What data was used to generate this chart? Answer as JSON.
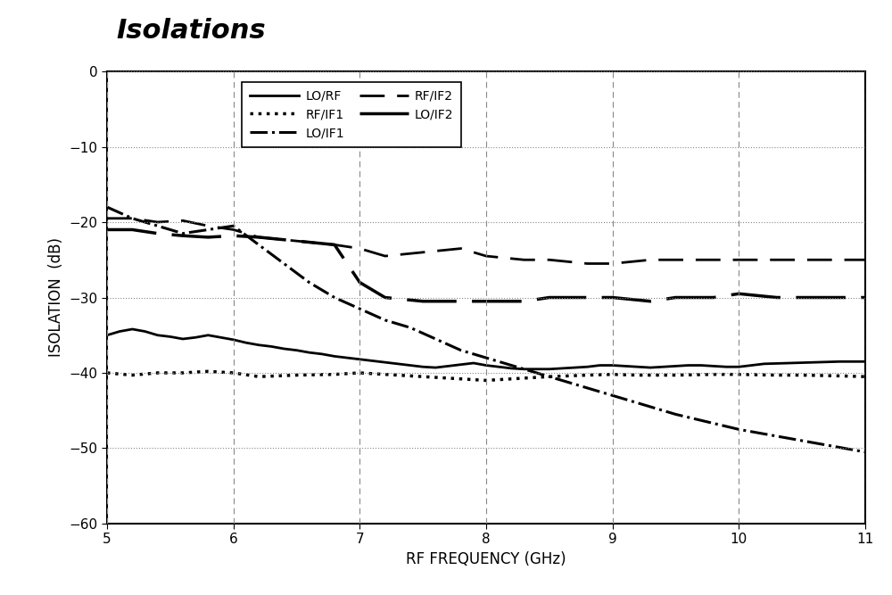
{
  "title": "Isolations",
  "xlabel": "RF FREQUENCY (GHz)",
  "ylabel": "ISOLATION  (dB)",
  "xlim": [
    5,
    11
  ],
  "ylim": [
    -60,
    0
  ],
  "xticks": [
    5,
    6,
    7,
    8,
    9,
    10,
    11
  ],
  "yticks": [
    0,
    -10,
    -20,
    -30,
    -40,
    -50,
    -60
  ],
  "background_color": "#ffffff",
  "grid_color": "#888888",
  "LO_RF": {
    "label": "LO/RF",
    "linestyle": "solid",
    "linewidth": 2.0,
    "color": "#000000",
    "x": [
      5.0,
      5.1,
      5.2,
      5.3,
      5.4,
      5.5,
      5.6,
      5.7,
      5.8,
      5.9,
      6.0,
      6.1,
      6.2,
      6.3,
      6.4,
      6.5,
      6.6,
      6.7,
      6.8,
      6.9,
      7.0,
      7.1,
      7.2,
      7.3,
      7.4,
      7.5,
      7.6,
      7.7,
      7.8,
      7.9,
      8.0,
      8.1,
      8.2,
      8.3,
      8.4,
      8.5,
      8.6,
      8.7,
      8.8,
      8.9,
      9.0,
      9.1,
      9.2,
      9.3,
      9.4,
      9.5,
      9.6,
      9.7,
      9.8,
      9.9,
      10.0,
      10.2,
      10.4,
      10.6,
      10.8,
      11.0
    ],
    "y": [
      -35.0,
      -34.5,
      -34.2,
      -34.5,
      -35.0,
      -35.2,
      -35.5,
      -35.3,
      -35.0,
      -35.3,
      -35.6,
      -36.0,
      -36.3,
      -36.5,
      -36.8,
      -37.0,
      -37.3,
      -37.5,
      -37.8,
      -38.0,
      -38.2,
      -38.4,
      -38.6,
      -38.8,
      -39.0,
      -39.2,
      -39.3,
      -39.1,
      -38.9,
      -38.7,
      -39.0,
      -39.2,
      -39.4,
      -39.5,
      -39.5,
      -39.5,
      -39.4,
      -39.3,
      -39.2,
      -39.0,
      -39.0,
      -39.1,
      -39.2,
      -39.3,
      -39.2,
      -39.1,
      -39.0,
      -39.0,
      -39.1,
      -39.2,
      -39.2,
      -38.8,
      -38.7,
      -38.6,
      -38.5,
      -38.5
    ]
  },
  "RF_IF1": {
    "label": "RF/IF1",
    "linestyle": "dotted",
    "linewidth": 2.5,
    "color": "#000000",
    "x": [
      5.0,
      5.2,
      5.4,
      5.5,
      5.6,
      5.8,
      6.0,
      6.2,
      6.5,
      6.8,
      7.0,
      7.2,
      7.5,
      7.8,
      8.0,
      8.2,
      8.5,
      8.8,
      9.0,
      9.2,
      9.5,
      9.8,
      10.0,
      10.3,
      10.5,
      10.8,
      11.0
    ],
    "y": [
      -40.0,
      -40.3,
      -40.0,
      -40.0,
      -40.0,
      -39.8,
      -40.0,
      -40.5,
      -40.3,
      -40.2,
      -40.0,
      -40.2,
      -40.5,
      -40.8,
      -41.0,
      -40.8,
      -40.5,
      -40.3,
      -40.2,
      -40.3,
      -40.3,
      -40.2,
      -40.2,
      -40.3,
      -40.3,
      -40.4,
      -40.5
    ]
  },
  "LO_IF1": {
    "label": "LO/IF1",
    "linestyle": "dashdot",
    "linewidth": 2.2,
    "color": "#000000",
    "x": [
      5.0,
      5.2,
      5.4,
      5.5,
      5.6,
      5.8,
      6.0,
      6.2,
      6.4,
      6.6,
      6.8,
      7.0,
      7.2,
      7.4,
      7.6,
      7.8,
      8.0,
      8.5,
      9.0,
      9.5,
      10.0,
      10.5,
      11.0
    ],
    "y": [
      -18.0,
      -19.5,
      -20.5,
      -21.0,
      -21.5,
      -21.0,
      -20.5,
      -23.0,
      -25.5,
      -28.0,
      -30.0,
      -31.5,
      -33.0,
      -34.0,
      -35.5,
      -37.0,
      -38.0,
      -40.5,
      -43.0,
      -45.5,
      -47.5,
      -49.0,
      -50.5
    ]
  },
  "RF_IF2": {
    "label": "RF/IF2",
    "linewidth": 2.0,
    "color": "#000000",
    "dash_on": 10,
    "dash_off": 5,
    "x": [
      5.0,
      5.2,
      5.4,
      5.6,
      5.8,
      6.0,
      6.2,
      6.5,
      6.8,
      7.0,
      7.2,
      7.5,
      7.8,
      8.0,
      8.3,
      8.5,
      8.8,
      9.0,
      9.3,
      9.5,
      9.8,
      10.0,
      10.3,
      10.5,
      10.8,
      11.0
    ],
    "y": [
      -19.5,
      -19.5,
      -20.0,
      -19.8,
      -20.5,
      -21.0,
      -22.0,
      -22.5,
      -23.0,
      -23.5,
      -24.5,
      -24.0,
      -23.5,
      -24.5,
      -25.0,
      -25.0,
      -25.5,
      -25.5,
      -25.0,
      -25.0,
      -25.0,
      -25.0,
      -25.0,
      -25.0,
      -25.0,
      -25.0
    ]
  },
  "LO_IF2": {
    "label": "LO/IF2",
    "linewidth": 2.5,
    "color": "#000000",
    "dash_on": 16,
    "dash_off": 5,
    "x": [
      5.0,
      5.2,
      5.4,
      5.6,
      5.8,
      6.0,
      6.2,
      6.5,
      6.8,
      7.0,
      7.2,
      7.5,
      7.8,
      8.0,
      8.3,
      8.5,
      8.8,
      9.0,
      9.3,
      9.5,
      9.8,
      10.0,
      10.3,
      10.5,
      10.8,
      11.0
    ],
    "y": [
      -21.0,
      -21.0,
      -21.5,
      -21.8,
      -22.0,
      -21.8,
      -22.0,
      -22.5,
      -23.0,
      -28.0,
      -30.0,
      -30.5,
      -30.5,
      -30.5,
      -30.5,
      -30.0,
      -30.0,
      -30.0,
      -30.5,
      -30.0,
      -30.0,
      -29.5,
      -30.0,
      -30.0,
      -30.0,
      -30.0
    ]
  }
}
